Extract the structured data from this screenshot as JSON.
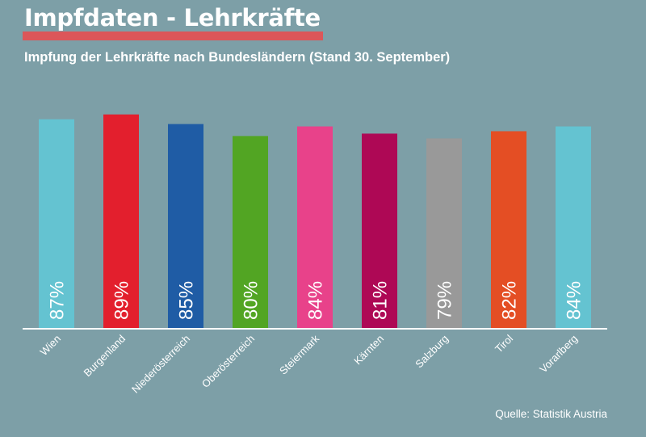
{
  "header": {
    "title": "Impfdaten - Lehrkräfte",
    "subtitle": "Impfung der Lehrkräfte nach Bundesländern (Stand 30. September)",
    "accent_color": "#dc5659"
  },
  "footer": {
    "source": "Quelle: Statistik Austria"
  },
  "chart_data": {
    "type": "bar",
    "title": "Impfdaten - Lehrkräfte",
    "subtitle": "Impfung der Lehrkräfte nach Bundesländern (Stand 30. September)",
    "xlabel": "",
    "ylabel": "",
    "ylim": [
      0,
      100
    ],
    "grid": false,
    "legend": "none",
    "value_unit": "%",
    "categories": [
      "Wien",
      "Burgenland",
      "Niederösterreich",
      "Oberösterreich",
      "Steiermark",
      "Kärnten",
      "Salzburg",
      "Tirol",
      "Vorarlberg"
    ],
    "values": [
      87,
      89,
      85,
      80,
      84,
      81,
      79,
      82,
      84
    ],
    "data_labels": [
      "87%",
      "89%",
      "85%",
      "80%",
      "84%",
      "81%",
      "79%",
      "82%",
      "84%"
    ],
    "colors": [
      "#64c3d1",
      "#e31f2d",
      "#1f5ca5",
      "#52a523",
      "#e8428a",
      "#ae0855",
      "#999999",
      "#e44e24",
      "#64c3d1"
    ],
    "background_color": "#7d9fa7",
    "axis_color": "#ffffff",
    "source": "Quelle: Statistik Austria"
  }
}
